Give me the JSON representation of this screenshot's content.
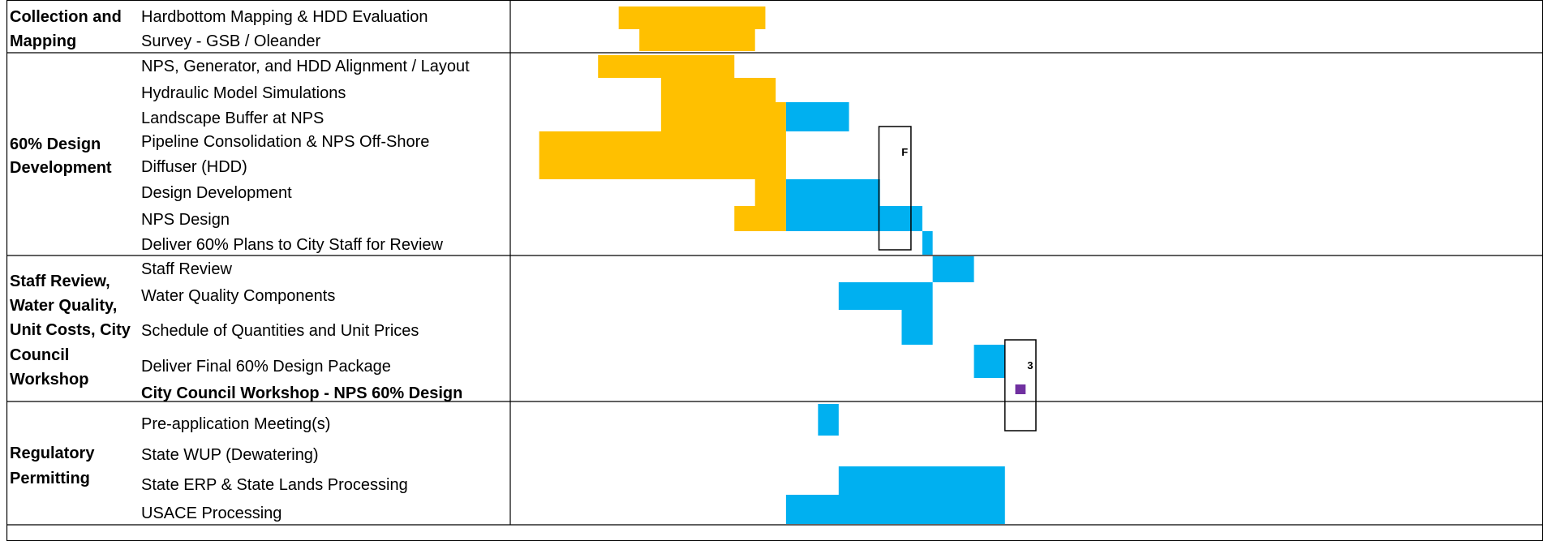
{
  "chart_data": {
    "type": "gantt",
    "colors": {
      "completed": "#FFC000",
      "scheduled": "#00B0F0",
      "meeting": "#7030A0",
      "grid": "#000000"
    },
    "phases": [
      {
        "label": [
          "Collection and",
          "Mapping"
        ],
        "tasks": [
          {
            "name": "Hardbottom Mapping & HDD Evaluation",
            "bars": [
              {
                "kind": "completed",
                "start": 0.105,
                "end": 0.247
              }
            ]
          },
          {
            "name": "Survey - GSB / Oleander",
            "bars": [
              {
                "kind": "completed",
                "start": 0.125,
                "end": 0.237
              }
            ]
          }
        ]
      },
      {
        "label": [
          "60% Design",
          "Development"
        ],
        "tasks": [
          {
            "name": "NPS, Generator, and HDD Alignment / Layout",
            "bars": [
              {
                "kind": "completed",
                "start": 0.085,
                "end": 0.217
              }
            ]
          },
          {
            "name": "Hydraulic Model Simulations",
            "bars": [
              {
                "kind": "completed",
                "start": 0.146,
                "end": 0.257
              }
            ]
          },
          {
            "name": "Landscape Buffer at NPS",
            "bars": [
              {
                "kind": "completed",
                "start": 0.146,
                "end": 0.267
              },
              {
                "kind": "scheduled",
                "start": 0.267,
                "end": 0.328
              }
            ]
          },
          {
            "name": "Pipeline Consolidation & NPS Off-Shore",
            "name2": "Diffuser (HDD)",
            "bars": [
              {
                "kind": "completed",
                "start": 0.028,
                "end": 0.267
              }
            ]
          },
          {
            "name": "Design Development",
            "bars": [
              {
                "kind": "completed",
                "start": 0.237,
                "end": 0.267
              },
              {
                "kind": "scheduled",
                "start": 0.267,
                "end": 0.358
              }
            ]
          },
          {
            "name": "NPS Design",
            "bars": [
              {
                "kind": "completed",
                "start": 0.217,
                "end": 0.267
              },
              {
                "kind": "scheduled",
                "start": 0.267,
                "end": 0.399
              }
            ]
          },
          {
            "name": "Deliver 60% Plans to City Staff for Review",
            "bars": [
              {
                "kind": "scheduled",
                "start": 0.399,
                "end": 0.409
              }
            ]
          }
        ]
      },
      {
        "label": [
          "Staff Review,",
          "Water Quality,",
          "Unit Costs, City",
          "Council",
          "Workshop"
        ],
        "tasks": [
          {
            "name": "Staff Review",
            "bars": [
              {
                "kind": "scheduled",
                "start": 0.409,
                "end": 0.449
              }
            ]
          },
          {
            "name": "Water Quality Components",
            "bars": [
              {
                "kind": "scheduled",
                "start": 0.318,
                "end": 0.409
              }
            ]
          },
          {
            "name": "Schedule of Quantities and Unit Prices",
            "bars": [
              {
                "kind": "scheduled",
                "start": 0.379,
                "end": 0.409
              }
            ]
          },
          {
            "name": "Deliver Final 60% Design Package",
            "bars": [
              {
                "kind": "scheduled",
                "start": 0.449,
                "end": 0.479
              }
            ]
          },
          {
            "name": "City Council Workshop - NPS 60% Design",
            "bold": true,
            "bars": [
              {
                "kind": "meeting",
                "start": 0.489,
                "end": 0.499
              }
            ]
          }
        ]
      },
      {
        "label": [
          "Regulatory",
          "Permitting"
        ],
        "tasks": [
          {
            "name": "Pre-application Meeting(s)",
            "bars": [
              {
                "kind": "scheduled",
                "start": 0.298,
                "end": 0.318
              }
            ]
          },
          {
            "name": "State WUP (Dewatering)",
            "bars": []
          },
          {
            "name": "State ERP & State Lands Processing",
            "bars": [
              {
                "kind": "scheduled",
                "start": 0.318,
                "end": 0.479
              }
            ]
          },
          {
            "name": "USACE Processing",
            "bars": [
              {
                "kind": "scheduled",
                "start": 0.267,
                "end": 0.479
              }
            ]
          }
        ]
      }
    ],
    "markers": [
      {
        "label": "F",
        "start": 0.357,
        "end": 0.388,
        "from_task": "Pipeline Consolidation & NPS Off-Shore",
        "to_task": "Deliver 60% Plans to City Staff for Review"
      },
      {
        "label": "3",
        "start": 0.479,
        "end": 0.509,
        "from_task": "Deliver Final 60% Design Package",
        "to_task": "Pre-application Meeting(s)"
      }
    ]
  }
}
